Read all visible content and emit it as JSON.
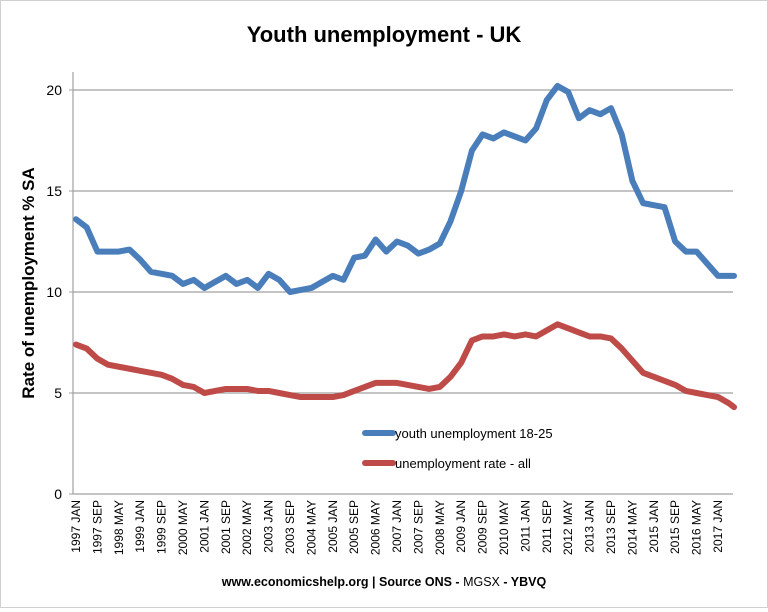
{
  "chart_data": {
    "type": "line",
    "title": "Youth unemployment - UK",
    "xlabel": "",
    "ylabel": "Rate of unemployment % SA",
    "ylim": [
      0,
      20
    ],
    "yticks": [
      0,
      5,
      10,
      15,
      20
    ],
    "grid": true,
    "legend_position": "bottom-center",
    "x_start": "1997 JAN",
    "xtick_labels": [
      "1997 JAN",
      "1997 SEP",
      "1998 MAY",
      "1999 JAN",
      "1999 SEP",
      "2000 MAY",
      "2001 JAN",
      "2001 SEP",
      "2002 MAY",
      "2003 JAN",
      "2003 SEP",
      "2004 MAY",
      "2005 JAN",
      "2005 SEP",
      "2006 MAY",
      "2007 JAN",
      "2007 SEP",
      "2008 MAY",
      "2009 JAN",
      "2009 SEP",
      "2010 MAY",
      "2011 JAN",
      "2011 SEP",
      "2012 MAY",
      "2013 JAN",
      "2013 SEP",
      "2014 MAY",
      "2015 JAN",
      "2015 SEP",
      "2016 MAY",
      "2017 JAN"
    ],
    "x_months_since_1997_jan": [
      0,
      4,
      8,
      12,
      16,
      20,
      24,
      28,
      32,
      36,
      40,
      44,
      48,
      52,
      56,
      60,
      64,
      68,
      72,
      76,
      80,
      84,
      88,
      92,
      96,
      100,
      104,
      108,
      112,
      116,
      120,
      124,
      128,
      132,
      136,
      140,
      144,
      148,
      152,
      156,
      160,
      164,
      168,
      172,
      176,
      180,
      184,
      188,
      192,
      196,
      200,
      204,
      208,
      212,
      216,
      220,
      224,
      228,
      232,
      236,
      240,
      244,
      246
    ],
    "series": [
      {
        "name": "youth unemployment 18-25",
        "color": "#4a7ebb",
        "values": [
          13.6,
          13.2,
          12.0,
          12.0,
          12.0,
          12.1,
          11.6,
          11.0,
          10.9,
          10.8,
          10.4,
          10.6,
          10.2,
          10.5,
          10.8,
          10.4,
          10.6,
          10.2,
          10.9,
          10.6,
          10.0,
          10.1,
          10.2,
          10.5,
          10.8,
          10.6,
          11.7,
          11.8,
          12.6,
          12.0,
          12.5,
          12.3,
          11.9,
          12.1,
          12.4,
          13.5,
          15.0,
          17.0,
          17.8,
          17.6,
          17.9,
          17.7,
          17.5,
          18.1,
          19.5,
          20.2,
          19.9,
          18.6,
          19.0,
          18.8,
          19.1,
          17.8,
          15.5,
          14.4,
          14.3,
          14.2,
          12.5,
          12.0,
          12.0,
          11.4,
          10.8,
          10.8,
          10.8
        ]
      },
      {
        "name": "unemployment rate - all",
        "color": "#be4b48",
        "values": [
          7.4,
          7.2,
          6.7,
          6.4,
          6.3,
          6.2,
          6.1,
          6.0,
          5.9,
          5.7,
          5.4,
          5.3,
          5.0,
          5.1,
          5.2,
          5.2,
          5.2,
          5.1,
          5.1,
          5.0,
          4.9,
          4.8,
          4.8,
          4.8,
          4.8,
          4.9,
          5.1,
          5.3,
          5.5,
          5.5,
          5.5,
          5.4,
          5.3,
          5.2,
          5.3,
          5.8,
          6.5,
          7.6,
          7.8,
          7.8,
          7.9,
          7.8,
          7.9,
          7.8,
          8.1,
          8.4,
          8.2,
          8.0,
          7.8,
          7.8,
          7.7,
          7.2,
          6.6,
          6.0,
          5.8,
          5.6,
          5.4,
          5.1,
          5.0,
          4.9,
          4.8,
          4.5,
          4.3
        ]
      }
    ],
    "footer": {
      "bold1": "www.economicshelp.org | Source ONS - ",
      "plain": "MGSX ",
      "bold2": " - YBVQ"
    }
  }
}
